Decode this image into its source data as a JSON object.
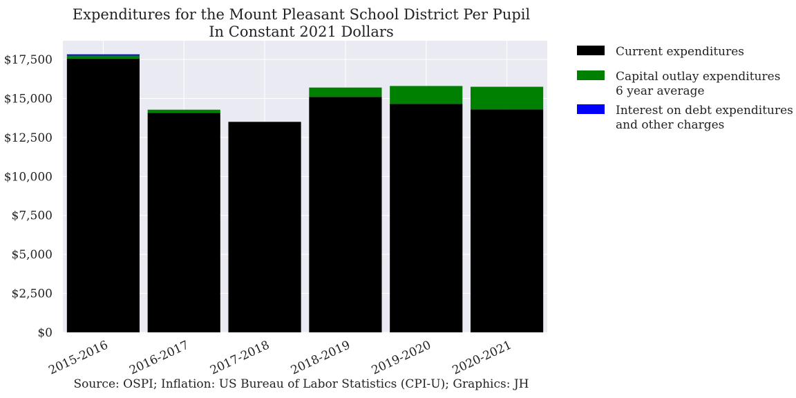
{
  "chart_data": {
    "type": "bar",
    "stacked": true,
    "title": "Expenditures for the Mount Pleasant School District Per Pupil",
    "subtitle": "In Constant 2021 Dollars",
    "xlabel": "",
    "ylabel": "",
    "categories": [
      "2015-2016",
      "2016-2017",
      "2017-2018",
      "2018-2019",
      "2019-2020",
      "2020-2021"
    ],
    "ylim": [
      0,
      18700
    ],
    "yticks": [
      0,
      2500,
      5000,
      7500,
      10000,
      12500,
      15000,
      17500
    ],
    "ytick_labels": [
      "$0",
      "$2,500",
      "$5,000",
      "$7,500",
      "$10,000",
      "$12,500",
      "$15,000",
      "$17,500"
    ],
    "grid": true,
    "legend_position": "outside-right",
    "series": [
      {
        "name": "Current expenditures",
        "color": "#000000",
        "values": [
          17550,
          14080,
          13500,
          15100,
          14650,
          14300
        ]
      },
      {
        "name": "Capital outlay expenditures\n6 year average",
        "color": "#008000",
        "values": [
          200,
          200,
          0,
          600,
          1150,
          1450
        ]
      },
      {
        "name": "Interest on debt expenditures\nand other charges",
        "color": "#0000ff",
        "values": [
          80,
          0,
          0,
          0,
          0,
          0
        ]
      }
    ],
    "source": "Source: OSPI; Inflation: US Bureau of Labor Statistics (CPI-U); Graphics: JH"
  }
}
